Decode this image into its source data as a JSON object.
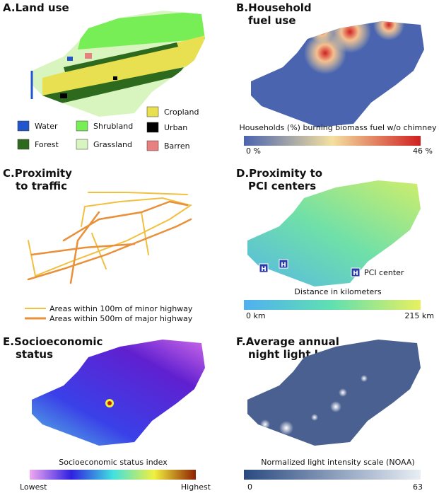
{
  "panels": [
    {
      "label": "A.",
      "title_lines": [
        "Land use"
      ],
      "legend": [
        {
          "name": "Water",
          "color": "#2255cc"
        },
        {
          "name": "Shrubland",
          "color": "#77ee55"
        },
        {
          "name": "Cropland",
          "color": "#e8e050"
        },
        {
          "name": "Forest",
          "color": "#2e6a1e"
        },
        {
          "name": "Grassland",
          "color": "#d8f5c0"
        },
        {
          "name": "Urban",
          "color": "#000000"
        },
        {
          "name": "Barren",
          "color": "#e88080"
        }
      ]
    },
    {
      "label": "B.",
      "title_lines": [
        "Household",
        "fuel use"
      ],
      "scale_title": "Households (%) burning biomass fuel w/o chimney",
      "scale_min": "0 %",
      "scale_max": "46 %"
    },
    {
      "label": "C.",
      "title_lines": [
        "Proximity",
        "to traffic"
      ],
      "legend": [
        {
          "name": "Areas within 100m of minor highway",
          "color": "#f2c040"
        },
        {
          "name": "Areas within 500m of major highway",
          "color": "#e8903a"
        }
      ]
    },
    {
      "label": "D.",
      "title_lines": [
        "Proximity to",
        "PCI centers"
      ],
      "icon_label": "H",
      "marker_label": "PCI center",
      "scale_title": "Distance in kilometers",
      "scale_min": "0 km",
      "scale_max": "215 km"
    },
    {
      "label": "E.",
      "title_lines": [
        "Socioeconomic",
        "status"
      ],
      "scale_title": "Socioeconomic status index",
      "scale_min": "Lowest",
      "scale_max": "Highest"
    },
    {
      "label": "F.",
      "title_lines": [
        "Average annual",
        "night light level"
      ],
      "scale_title": "Normalized light intensity scale (NOAA)",
      "scale_min": "0",
      "scale_max": "63"
    }
  ]
}
